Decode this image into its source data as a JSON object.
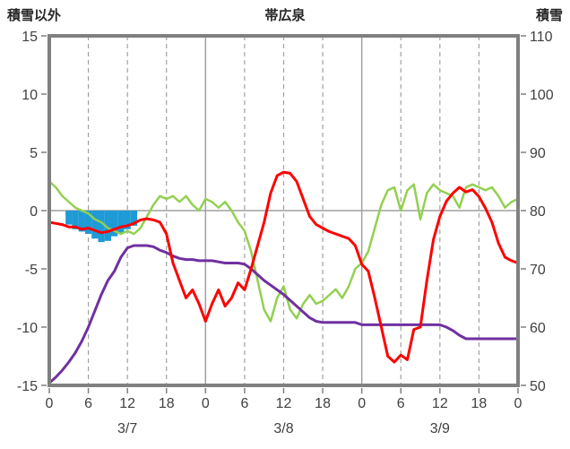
{
  "titles": {
    "left_axis": "積雪以外",
    "chart": "帯広泉",
    "right_axis": "積雪"
  },
  "colors": {
    "background": "#ffffff",
    "frame": "#808080",
    "grid": "#a0a0a0",
    "tick_text": "#404040",
    "title_text": "#262626",
    "red_series": "#ff0000",
    "green_series": "#92d050",
    "purple_series": "#7030a0",
    "blue_bars": "#1e9ad6"
  },
  "chart_data": {
    "type": "line",
    "title": "帯広泉",
    "left_axis": {
      "label": "積雪以外",
      "min": -15,
      "max": 15,
      "ticks": [
        15,
        10,
        5,
        0,
        -5,
        -10,
        -15
      ]
    },
    "right_axis": {
      "label": "積雪",
      "min": 50,
      "max": 110,
      "ticks": [
        110,
        100,
        90,
        80,
        70,
        60,
        50
      ]
    },
    "x_axis": {
      "unit": "hour",
      "min": 0,
      "max": 72,
      "tick_interval": 6,
      "tick_labels": [
        "0",
        "6",
        "12",
        "18",
        "0",
        "6",
        "12",
        "18",
        "0",
        "6",
        "12",
        "18",
        "0"
      ],
      "day_labels": [
        "3/7",
        "3/8",
        "3/9"
      ],
      "solid_gridline_hours": [
        24,
        48
      ],
      "dashed_gridline_hours": [
        6,
        12,
        18,
        30,
        36,
        42,
        54,
        60,
        66
      ]
    },
    "grid": {
      "zero_line": true
    },
    "series": [
      {
        "name": "green-series",
        "color": "#92d050",
        "axis": "right",
        "width": 2.5,
        "x_start": 0,
        "x_step": 1,
        "values": [
          85,
          84,
          82.5,
          81.5,
          80.5,
          80,
          79.5,
          78.5,
          78,
          77,
          76.5,
          76,
          76.5,
          76,
          77,
          79,
          81,
          82.5,
          82,
          82.5,
          81.5,
          82.5,
          81,
          80,
          82,
          81.5,
          80.5,
          81.5,
          80,
          78,
          76.5,
          73,
          68,
          63,
          61,
          65,
          67,
          63,
          61.5,
          64,
          65.5,
          64,
          64.5,
          65.5,
          66.5,
          65,
          67,
          70,
          71,
          73,
          77,
          81,
          83.5,
          84,
          80,
          83.5,
          84.5,
          78.5,
          83,
          84.5,
          83.5,
          83,
          82.5,
          80.5,
          84,
          84.5,
          84,
          83.5,
          84,
          82.5,
          80.5,
          81.5,
          82
        ]
      },
      {
        "name": "purple-series",
        "color": "#7030a0",
        "axis": "left",
        "width": 3,
        "x_start": 0,
        "x_step": 1,
        "values": [
          -14.8,
          -14.3,
          -13.7,
          -13.0,
          -12.2,
          -11.2,
          -10.0,
          -8.6,
          -7.2,
          -6.0,
          -5.2,
          -4.0,
          -3.2,
          -3.0,
          -3.0,
          -3.0,
          -3.1,
          -3.4,
          -3.6,
          -3.9,
          -4.1,
          -4.2,
          -4.2,
          -4.3,
          -4.3,
          -4.3,
          -4.4,
          -4.5,
          -4.5,
          -4.5,
          -4.6,
          -5.0,
          -5.5,
          -6.0,
          -6.4,
          -6.8,
          -7.2,
          -7.7,
          -8.2,
          -8.7,
          -9.2,
          -9.5,
          -9.6,
          -9.6,
          -9.6,
          -9.6,
          -9.6,
          -9.6,
          -9.8,
          -9.8,
          -9.8,
          -9.8,
          -9.8,
          -9.8,
          -9.8,
          -9.8,
          -9.8,
          -9.8,
          -9.8,
          -9.8,
          -9.8,
          -10.0,
          -10.3,
          -10.7,
          -11.0,
          -11.0,
          -11.0,
          -11.0,
          -11.0,
          -11.0,
          -11.0,
          -11.0,
          -11.0
        ]
      },
      {
        "name": "red-series",
        "color": "#ff0000",
        "axis": "left",
        "width": 3,
        "x_start": 0,
        "x_step": 1,
        "values": [
          -1.0,
          -1.1,
          -1.2,
          -1.4,
          -1.4,
          -1.6,
          -1.5,
          -1.7,
          -1.9,
          -1.8,
          -1.6,
          -1.4,
          -1.3,
          -1.1,
          -0.8,
          -0.7,
          -0.8,
          -1.0,
          -2.0,
          -4.5,
          -6.0,
          -7.5,
          -6.8,
          -8.0,
          -9.5,
          -8.0,
          -6.8,
          -8.2,
          -7.5,
          -6.2,
          -6.8,
          -5.0,
          -3.0,
          -1.0,
          1.5,
          3.0,
          3.3,
          3.2,
          2.5,
          1.0,
          -0.5,
          -1.2,
          -1.5,
          -1.8,
          -2.0,
          -2.2,
          -2.4,
          -3.0,
          -4.6,
          -5.2,
          -7.5,
          -10.0,
          -12.5,
          -13.0,
          -12.4,
          -12.8,
          -10.2,
          -10.0,
          -6.0,
          -2.5,
          -0.5,
          0.8,
          1.5,
          2.0,
          1.6,
          1.8,
          1.2,
          0.2,
          -1.0,
          -2.8,
          -4.0,
          -4.3,
          -4.5
        ]
      }
    ],
    "bars": {
      "name": "blue-bars",
      "color": "#1e9ad6",
      "axis": "left",
      "baseline": 0,
      "bar_width_hours": 1,
      "points": [
        {
          "hour": 3,
          "value": -1.2
        },
        {
          "hour": 4,
          "value": -1.6
        },
        {
          "hour": 5,
          "value": -1.8
        },
        {
          "hour": 6,
          "value": -2.0
        },
        {
          "hour": 7,
          "value": -2.4
        },
        {
          "hour": 8,
          "value": -2.7
        },
        {
          "hour": 9,
          "value": -2.6
        },
        {
          "hour": 10,
          "value": -2.2
        },
        {
          "hour": 11,
          "value": -1.9
        },
        {
          "hour": 12,
          "value": -1.6
        },
        {
          "hour": 13,
          "value": -1.3
        }
      ]
    }
  }
}
